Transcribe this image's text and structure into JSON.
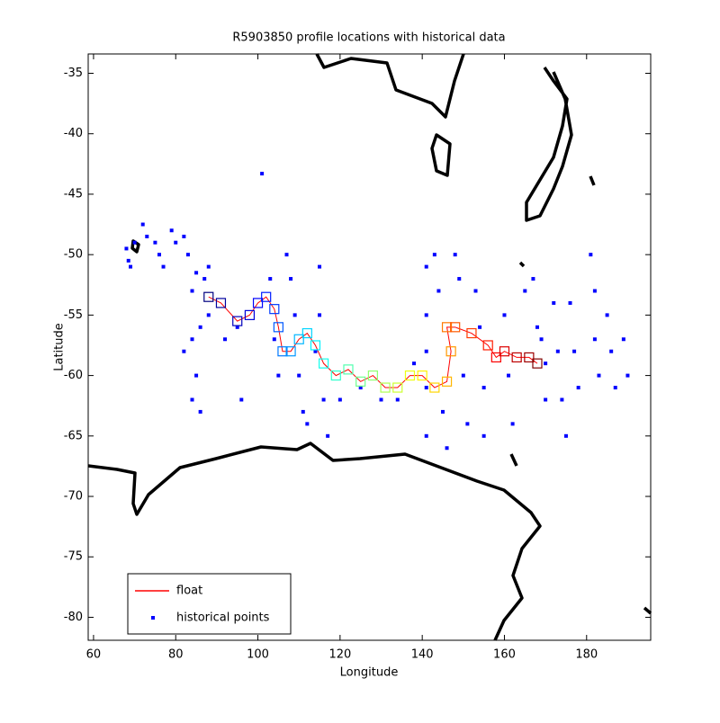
{
  "chart_data": {
    "type": "scatter",
    "title": "R5903850 profile locations with historical data",
    "xlabel": "Longitude",
    "ylabel": "Latitude",
    "xlim": [
      58.7,
      195.6
    ],
    "ylim": [
      -81.9,
      -33.4
    ],
    "xticks": [
      60,
      80,
      100,
      120,
      140,
      160,
      180
    ],
    "yticks": [
      -80,
      -75,
      -70,
      -65,
      -60,
      -55,
      -50,
      -45,
      -40,
      -35
    ],
    "legend": "lower left",
    "series": [
      {
        "name": "float",
        "color": "#ff0000",
        "colormap": "jet",
        "x": [
          88,
          91,
          95,
          98,
          100,
          102,
          104,
          105,
          106,
          108,
          110,
          112,
          114,
          116,
          119,
          122,
          125,
          128,
          131,
          134,
          137,
          140,
          143,
          146,
          147,
          146,
          148,
          152,
          156,
          158,
          160,
          163,
          166,
          168
        ],
        "y": [
          -53.5,
          -54,
          -55.5,
          -55,
          -54,
          -53.5,
          -54.5,
          -56,
          -58,
          -58,
          -57,
          -56.5,
          -57.5,
          -59,
          -60,
          -59.5,
          -60.5,
          -60,
          -61,
          -61,
          -60,
          -60,
          -61,
          -60.5,
          -58,
          -56,
          -56,
          -56.5,
          -57.5,
          -58.5,
          -58,
          -58.5,
          -58.5,
          -59
        ]
      },
      {
        "name": "historical points",
        "color": "#0000ff",
        "x": [
          68,
          68.5,
          69,
          70,
          72,
          73,
          75,
          76,
          77,
          79,
          80,
          82,
          83,
          85,
          84,
          87,
          88,
          82,
          84,
          86,
          88,
          85,
          84,
          86,
          92,
          95,
          96,
          101,
          103,
          104,
          105,
          107,
          108,
          109,
          110,
          111,
          112,
          114,
          115,
          115,
          116,
          117,
          120,
          125,
          130,
          134,
          138,
          141,
          141,
          141,
          141,
          141,
          143,
          144,
          145,
          146,
          148,
          149,
          150,
          151,
          153,
          154,
          155,
          155,
          160,
          161,
          162,
          165,
          167,
          168,
          169,
          170,
          170,
          172,
          173,
          174,
          175,
          176,
          177,
          178,
          181,
          182,
          182,
          183,
          185,
          186,
          187,
          189,
          190
        ],
        "y": [
          -49.5,
          -50.5,
          -51,
          -49,
          -47.5,
          -48.5,
          -49,
          -50,
          -51,
          -48,
          -49,
          -48.5,
          -50,
          -51.5,
          -53,
          -52,
          -51,
          -58,
          -57,
          -56,
          -55,
          -60,
          -62,
          -63,
          -57,
          -56,
          -62,
          -43.3,
          -52,
          -57,
          -60,
          -50,
          -52,
          -55,
          -60,
          -63,
          -64,
          -58,
          -55,
          -51,
          -62,
          -65,
          -62,
          -61,
          -62,
          -62,
          -59,
          -51,
          -55,
          -58,
          -61,
          -65,
          -50,
          -53,
          -63,
          -66,
          -50,
          -52,
          -60,
          -64,
          -53,
          -56,
          -61,
          -65,
          -55,
          -60,
          -64,
          -53,
          -52,
          -56,
          -57,
          -59,
          -62,
          -54,
          -58,
          -62,
          -65,
          -54,
          -58,
          -61,
          -50,
          -53,
          -57,
          -60,
          -55,
          -58,
          -61,
          -57,
          -60
        ]
      }
    ]
  }
}
